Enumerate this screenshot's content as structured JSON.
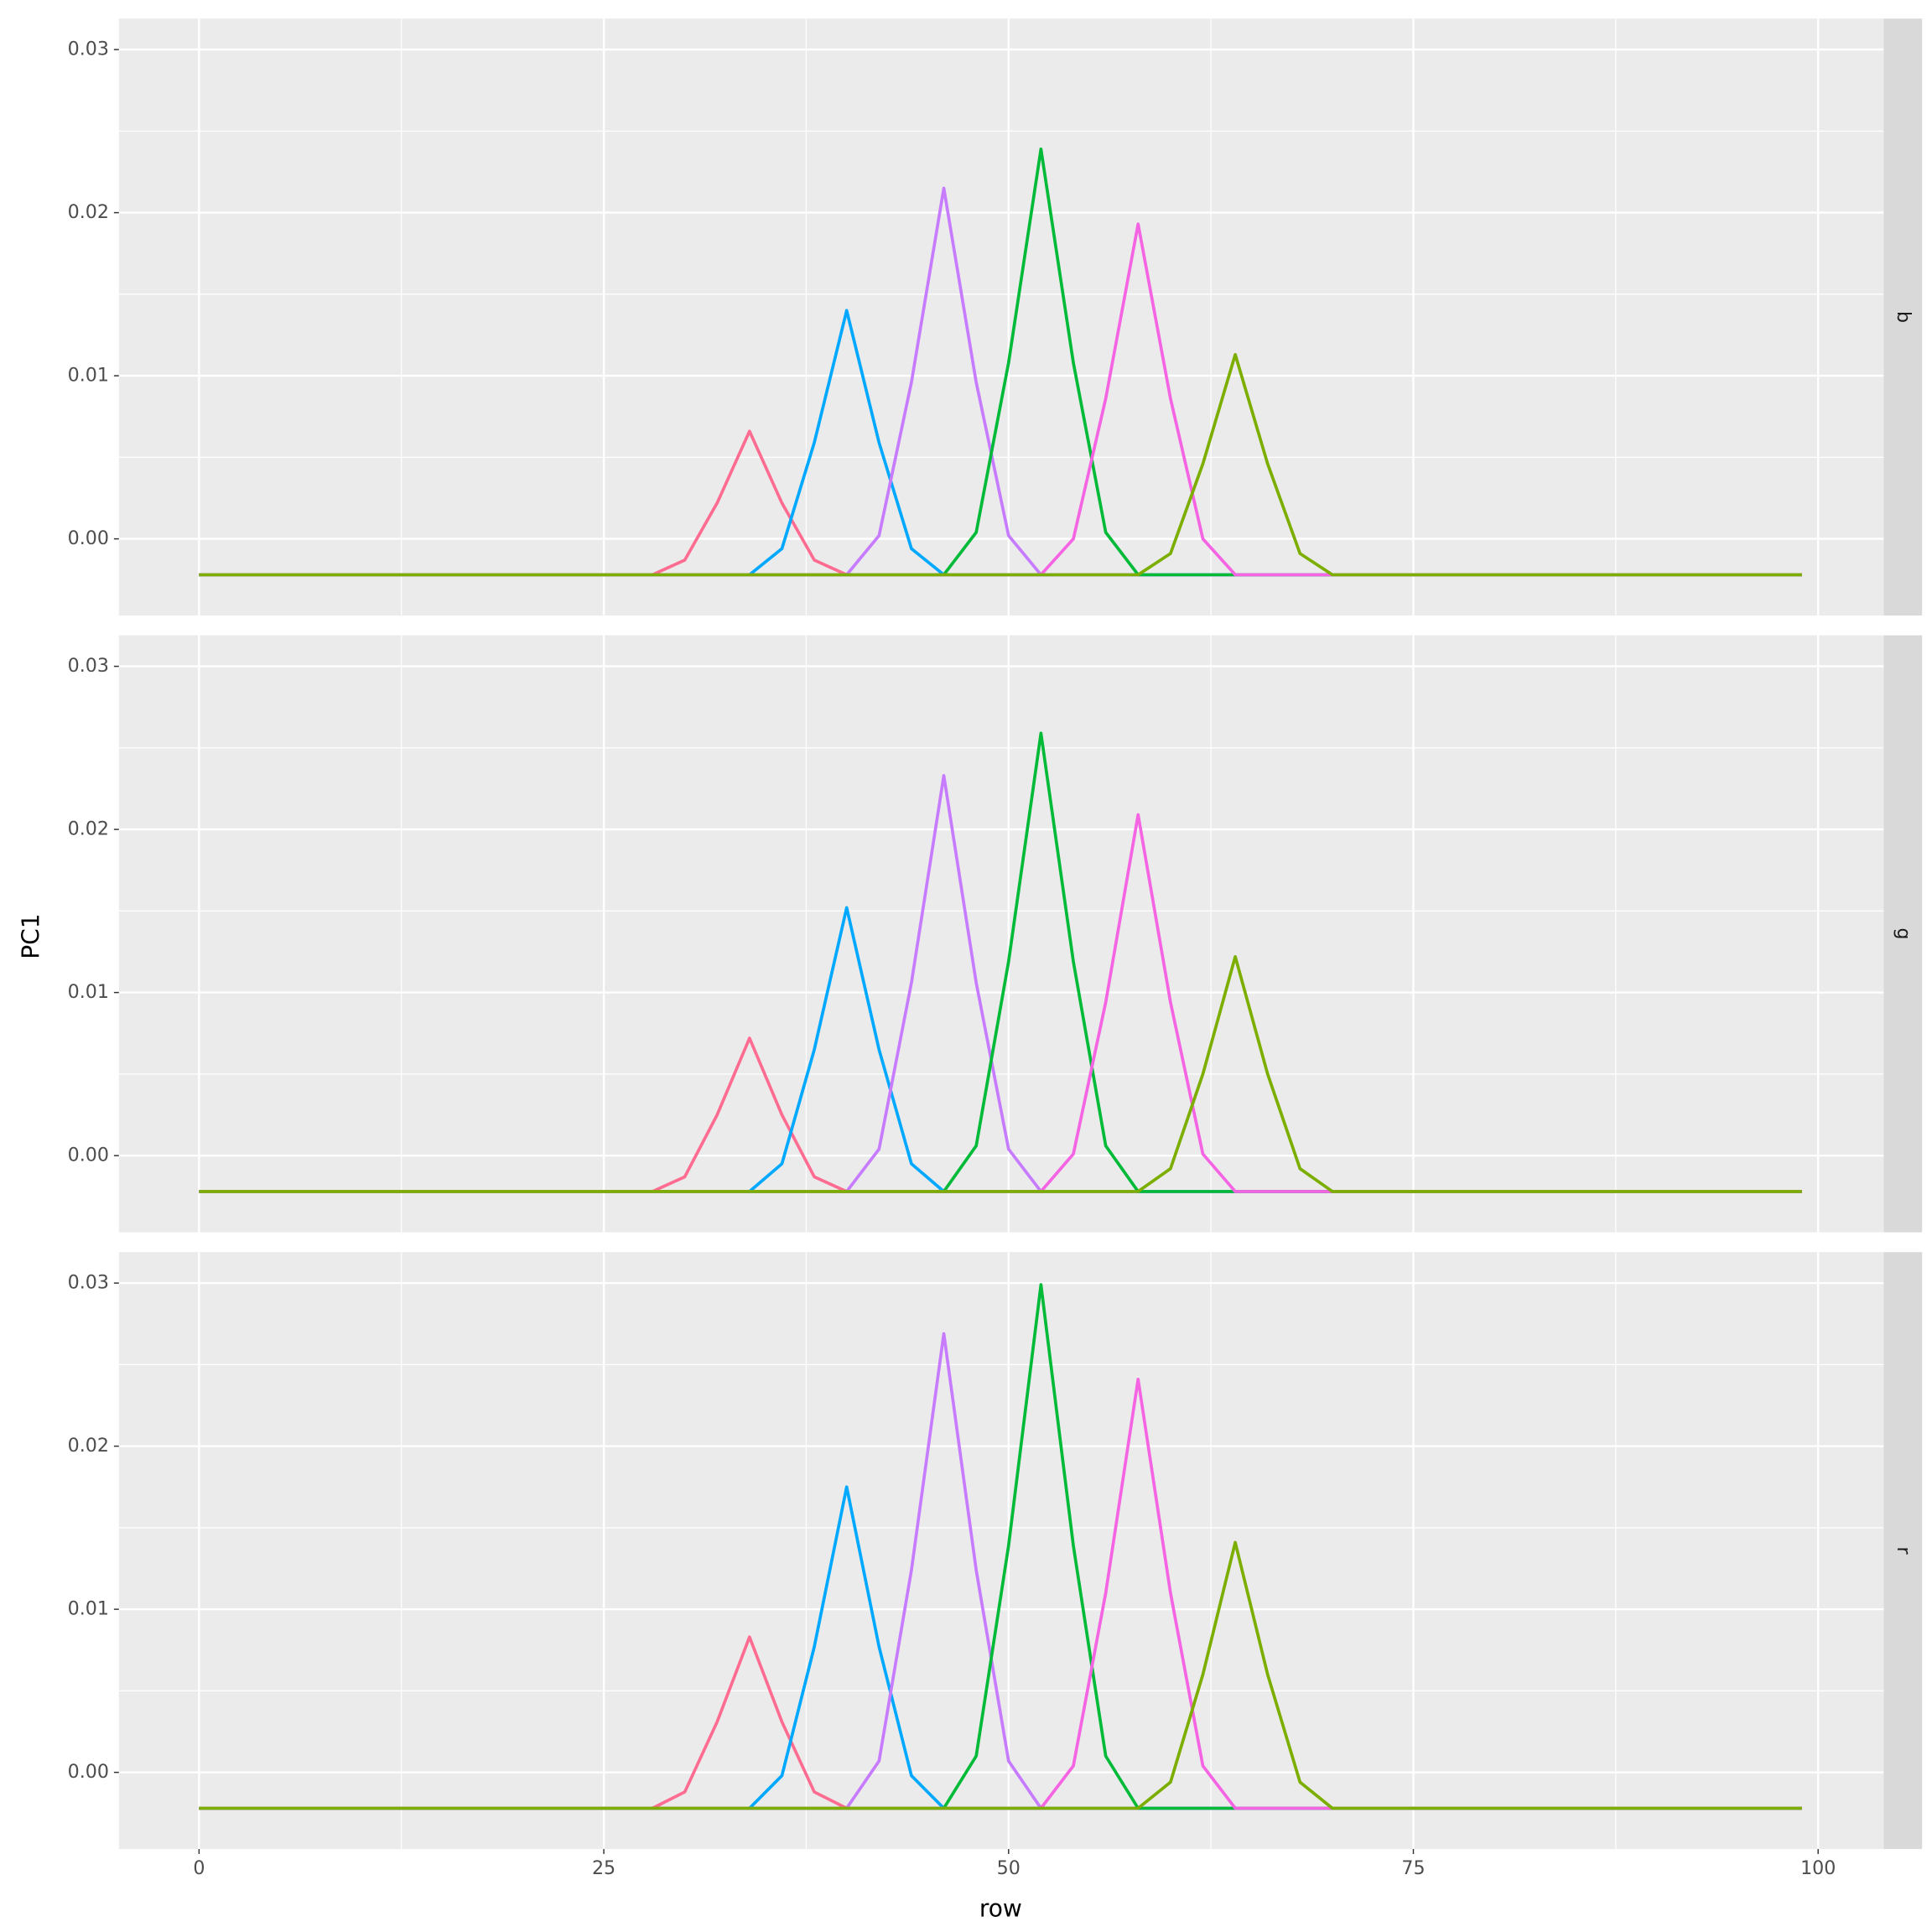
{
  "x_label": "row",
  "y_label": "PC1",
  "chart_data": [
    {
      "type": "line",
      "facet": "b",
      "x": [
        0,
        10,
        20,
        25,
        28,
        30,
        32,
        34,
        36,
        38,
        40,
        42,
        44,
        46,
        48,
        50,
        52,
        54,
        56,
        58,
        60,
        62,
        64,
        66,
        68,
        70,
        72,
        75,
        80,
        90,
        99
      ],
      "xlim": [
        -4.95,
        104.05
      ],
      "xticks": [
        0,
        25,
        50,
        75,
        100
      ],
      "xminor": [
        12.5,
        37.5,
        62.5,
        87.5
      ],
      "ylim": [
        -0.0047,
        0.0319
      ],
      "yticks": [
        {
          "value": 0,
          "label": "0.00"
        },
        0.01,
        0.02,
        0.03
      ],
      "yminor": [
        0.005,
        0.015,
        0.025
      ],
      "grid": true,
      "series": [
        {
          "color": "#ff6c91",
          "values": [
            -0.0022,
            -0.0022,
            -0.0022,
            -0.0022,
            -0.0022,
            -0.0013,
            0.0022,
            0.0066,
            0.0022,
            -0.0013,
            -0.0022,
            -0.0022,
            -0.0022,
            -0.0022,
            -0.0022,
            -0.0022,
            -0.0022,
            -0.0022,
            -0.0022,
            -0.0022,
            -0.0022,
            -0.0022,
            -0.0022,
            -0.0022,
            -0.0022,
            -0.0022,
            -0.0022,
            -0.0022,
            -0.0022,
            -0.0022,
            -0.0022
          ]
        },
        {
          "color": "#00a9ff",
          "values": [
            -0.0022,
            -0.0022,
            -0.0022,
            -0.0022,
            -0.0022,
            -0.0022,
            -0.0022,
            -0.0022,
            -0.0006,
            0.0059,
            0.014,
            0.0059,
            -0.0006,
            -0.0022,
            -0.0022,
            -0.0022,
            -0.0022,
            -0.0022,
            -0.0022,
            -0.0022,
            -0.0022,
            -0.0022,
            -0.0022,
            -0.0022,
            -0.0022,
            -0.0022,
            -0.0022,
            -0.0022,
            -0.0022,
            -0.0022,
            -0.0022
          ]
        },
        {
          "color": "#c77cff",
          "values": [
            -0.0022,
            -0.0022,
            -0.0022,
            -0.0022,
            -0.0022,
            -0.0022,
            -0.0022,
            -0.0022,
            -0.0022,
            -0.0022,
            -0.0022,
            0.0002,
            0.0096,
            0.0215,
            0.0096,
            0.0002,
            -0.0022,
            -0.0022,
            -0.0022,
            -0.0022,
            -0.0022,
            -0.0022,
            -0.0022,
            -0.0022,
            -0.0022,
            -0.0022,
            -0.0022,
            -0.0022,
            -0.0022,
            -0.0022,
            -0.0022
          ]
        },
        {
          "color": "#00ba38",
          "values": [
            -0.0022,
            -0.0022,
            -0.0022,
            -0.0022,
            -0.0022,
            -0.0022,
            -0.0022,
            -0.0022,
            -0.0022,
            -0.0022,
            -0.0022,
            -0.0022,
            -0.0022,
            -0.0022,
            0.0004,
            0.0108,
            0.0239,
            0.0108,
            0.0004,
            -0.0022,
            -0.0022,
            -0.0022,
            -0.0022,
            -0.0022,
            -0.0022,
            -0.0022,
            -0.0022,
            -0.0022,
            -0.0022,
            -0.0022,
            -0.0022
          ]
        },
        {
          "color": "#f564e3",
          "values": [
            -0.0022,
            -0.0022,
            -0.0022,
            -0.0022,
            -0.0022,
            -0.0022,
            -0.0022,
            -0.0022,
            -0.0022,
            -0.0022,
            -0.0022,
            -0.0022,
            -0.0022,
            -0.0022,
            -0.0022,
            -0.0022,
            -0.0022,
            0,
            0.0086,
            0.0193,
            0.0086,
            0,
            -0.0022,
            -0.0022,
            -0.0022,
            -0.0022,
            -0.0022,
            -0.0022,
            -0.0022,
            -0.0022,
            -0.0022
          ]
        },
        {
          "color": "#7cae00",
          "values": [
            -0.0022,
            -0.0022,
            -0.0022,
            -0.0022,
            -0.0022,
            -0.0022,
            -0.0022,
            -0.0022,
            -0.0022,
            -0.0022,
            -0.0022,
            -0.0022,
            -0.0022,
            -0.0022,
            -0.0022,
            -0.0022,
            -0.0022,
            -0.0022,
            -0.0022,
            -0.0022,
            -0.0009,
            0.0046,
            0.0113,
            0.0046,
            -0.0009,
            -0.0022,
            -0.0022,
            -0.0022,
            -0.0022,
            -0.0022,
            -0.0022
          ]
        }
      ]
    },
    {
      "type": "line",
      "facet": "g",
      "x": [
        0,
        10,
        20,
        25,
        28,
        30,
        32,
        34,
        36,
        38,
        40,
        42,
        44,
        46,
        48,
        50,
        52,
        54,
        56,
        58,
        60,
        62,
        64,
        66,
        68,
        70,
        72,
        75,
        80,
        90,
        99
      ],
      "xlim": [
        -4.95,
        104.05
      ],
      "xticks": [
        0,
        25,
        50,
        75,
        100
      ],
      "xminor": [
        12.5,
        37.5,
        62.5,
        87.5
      ],
      "ylim": [
        -0.0047,
        0.0319
      ],
      "yticks": [
        {
          "value": 0,
          "label": "0.00"
        },
        0.01,
        0.02,
        0.03
      ],
      "yminor": [
        0.005,
        0.015,
        0.025
      ],
      "grid": true,
      "series": [
        {
          "color": "#ff6c91",
          "values": [
            -0.0022,
            -0.0022,
            -0.0022,
            -0.0022,
            -0.0022,
            -0.0013,
            0.0025,
            0.0072,
            0.0025,
            -0.0013,
            -0.0022,
            -0.0022,
            -0.0022,
            -0.0022,
            -0.0022,
            -0.0022,
            -0.0022,
            -0.0022,
            -0.0022,
            -0.0022,
            -0.0022,
            -0.0022,
            -0.0022,
            -0.0022,
            -0.0022,
            -0.0022,
            -0.0022,
            -0.0022,
            -0.0022,
            -0.0022,
            -0.0022
          ]
        },
        {
          "color": "#00a9ff",
          "values": [
            -0.0022,
            -0.0022,
            -0.0022,
            -0.0022,
            -0.0022,
            -0.0022,
            -0.0022,
            -0.0022,
            -0.0005,
            0.0065,
            0.0152,
            0.0065,
            -0.0005,
            -0.0022,
            -0.0022,
            -0.0022,
            -0.0022,
            -0.0022,
            -0.0022,
            -0.0022,
            -0.0022,
            -0.0022,
            -0.0022,
            -0.0022,
            -0.0022,
            -0.0022,
            -0.0022,
            -0.0022,
            -0.0022,
            -0.0022,
            -0.0022
          ]
        },
        {
          "color": "#c77cff",
          "values": [
            -0.0022,
            -0.0022,
            -0.0022,
            -0.0022,
            -0.0022,
            -0.0022,
            -0.0022,
            -0.0022,
            -0.0022,
            -0.0022,
            -0.0022,
            0.0004,
            0.0106,
            0.0233,
            0.0106,
            0.0004,
            -0.0022,
            -0.0022,
            -0.0022,
            -0.0022,
            -0.0022,
            -0.0022,
            -0.0022,
            -0.0022,
            -0.0022,
            -0.0022,
            -0.0022,
            -0.0022,
            -0.0022,
            -0.0022,
            -0.0022
          ]
        },
        {
          "color": "#00ba38",
          "values": [
            -0.0022,
            -0.0022,
            -0.0022,
            -0.0022,
            -0.0022,
            -0.0022,
            -0.0022,
            -0.0022,
            -0.0022,
            -0.0022,
            -0.0022,
            -0.0022,
            -0.0022,
            -0.0022,
            0.0006,
            0.0119,
            0.0259,
            0.0119,
            0.0006,
            -0.0022,
            -0.0022,
            -0.0022,
            -0.0022,
            -0.0022,
            -0.0022,
            -0.0022,
            -0.0022,
            -0.0022,
            -0.0022,
            -0.0022,
            -0.0022
          ]
        },
        {
          "color": "#f564e3",
          "values": [
            -0.0022,
            -0.0022,
            -0.0022,
            -0.0022,
            -0.0022,
            -0.0022,
            -0.0022,
            -0.0022,
            -0.0022,
            -0.0022,
            -0.0022,
            -0.0022,
            -0.0022,
            -0.0022,
            -0.0022,
            -0.0022,
            -0.0022,
            0.0001,
            0.0094,
            0.0209,
            0.0094,
            0.0001,
            -0.0022,
            -0.0022,
            -0.0022,
            -0.0022,
            -0.0022,
            -0.0022,
            -0.0022,
            -0.0022,
            -0.0022
          ]
        },
        {
          "color": "#7cae00",
          "values": [
            -0.0022,
            -0.0022,
            -0.0022,
            -0.0022,
            -0.0022,
            -0.0022,
            -0.0022,
            -0.0022,
            -0.0022,
            -0.0022,
            -0.0022,
            -0.0022,
            -0.0022,
            -0.0022,
            -0.0022,
            -0.0022,
            -0.0022,
            -0.0022,
            -0.0022,
            -0.0022,
            -0.0008,
            0.005,
            0.0122,
            0.005,
            -0.0008,
            -0.0022,
            -0.0022,
            -0.0022,
            -0.0022,
            -0.0022,
            -0.0022
          ]
        }
      ]
    },
    {
      "type": "line",
      "facet": "r",
      "x": [
        0,
        10,
        20,
        25,
        28,
        30,
        32,
        34,
        36,
        38,
        40,
        42,
        44,
        46,
        48,
        50,
        52,
        54,
        56,
        58,
        60,
        62,
        64,
        66,
        68,
        70,
        72,
        75,
        80,
        90,
        99
      ],
      "xlim": [
        -4.95,
        104.05
      ],
      "xticks": [
        0,
        25,
        50,
        75,
        100
      ],
      "xminor": [
        12.5,
        37.5,
        62.5,
        87.5
      ],
      "ylim": [
        -0.0047,
        0.0319
      ],
      "yticks": [
        {
          "value": 0,
          "label": "0.00"
        },
        0.01,
        0.02,
        0.03
      ],
      "yminor": [
        0.005,
        0.015,
        0.025
      ],
      "grid": true,
      "series": [
        {
          "color": "#ff6c91",
          "values": [
            -0.0022,
            -0.0022,
            -0.0022,
            -0.0022,
            -0.0022,
            -0.0012,
            0.0031,
            0.0083,
            0.0031,
            -0.0012,
            -0.0022,
            -0.0022,
            -0.0022,
            -0.0022,
            -0.0022,
            -0.0022,
            -0.0022,
            -0.0022,
            -0.0022,
            -0.0022,
            -0.0022,
            -0.0022,
            -0.0022,
            -0.0022,
            -0.0022,
            -0.0022,
            -0.0022,
            -0.0022,
            -0.0022,
            -0.0022,
            -0.0022
          ]
        },
        {
          "color": "#00a9ff",
          "values": [
            -0.0022,
            -0.0022,
            -0.0022,
            -0.0022,
            -0.0022,
            -0.0022,
            -0.0022,
            -0.0022,
            -0.0002,
            0.0077,
            0.0175,
            0.0077,
            -0.0002,
            -0.0022,
            -0.0022,
            -0.0022,
            -0.0022,
            -0.0022,
            -0.0022,
            -0.0022,
            -0.0022,
            -0.0022,
            -0.0022,
            -0.0022,
            -0.0022,
            -0.0022,
            -0.0022,
            -0.0022,
            -0.0022,
            -0.0022,
            -0.0022
          ]
        },
        {
          "color": "#c77cff",
          "values": [
            -0.0022,
            -0.0022,
            -0.0022,
            -0.0022,
            -0.0022,
            -0.0022,
            -0.0022,
            -0.0022,
            -0.0022,
            -0.0022,
            -0.0022,
            0.0007,
            0.0124,
            0.0269,
            0.0124,
            0.0007,
            -0.0022,
            -0.0022,
            -0.0022,
            -0.0022,
            -0.0022,
            -0.0022,
            -0.0022,
            -0.0022,
            -0.0022,
            -0.0022,
            -0.0022,
            -0.0022,
            -0.0022,
            -0.0022,
            -0.0022
          ]
        },
        {
          "color": "#00ba38",
          "values": [
            -0.0022,
            -0.0022,
            -0.0022,
            -0.0022,
            -0.0022,
            -0.0022,
            -0.0022,
            -0.0022,
            -0.0022,
            -0.0022,
            -0.0022,
            -0.0022,
            -0.0022,
            -0.0022,
            0.001,
            0.0139,
            0.0299,
            0.0139,
            0.001,
            -0.0022,
            -0.0022,
            -0.0022,
            -0.0022,
            -0.0022,
            -0.0022,
            -0.0022,
            -0.0022,
            -0.0022,
            -0.0022,
            -0.0022,
            -0.0022
          ]
        },
        {
          "color": "#f564e3",
          "values": [
            -0.0022,
            -0.0022,
            -0.0022,
            -0.0022,
            -0.0022,
            -0.0022,
            -0.0022,
            -0.0022,
            -0.0022,
            -0.0022,
            -0.0022,
            -0.0022,
            -0.0022,
            -0.0022,
            -0.0022,
            -0.0022,
            -0.0022,
            0.0004,
            0.011,
            0.0241,
            0.011,
            0.0004,
            -0.0022,
            -0.0022,
            -0.0022,
            -0.0022,
            -0.0022,
            -0.0022,
            -0.0022,
            -0.0022,
            -0.0022
          ]
        },
        {
          "color": "#7cae00",
          "values": [
            -0.0022,
            -0.0022,
            -0.0022,
            -0.0022,
            -0.0022,
            -0.0022,
            -0.0022,
            -0.0022,
            -0.0022,
            -0.0022,
            -0.0022,
            -0.0022,
            -0.0022,
            -0.0022,
            -0.0022,
            -0.0022,
            -0.0022,
            -0.0022,
            -0.0022,
            -0.0022,
            -0.0006,
            0.006,
            0.0141,
            0.006,
            -0.0006,
            -0.0022,
            -0.0022,
            -0.0022,
            -0.0022,
            -0.0022,
            -0.0022
          ]
        }
      ]
    }
  ]
}
